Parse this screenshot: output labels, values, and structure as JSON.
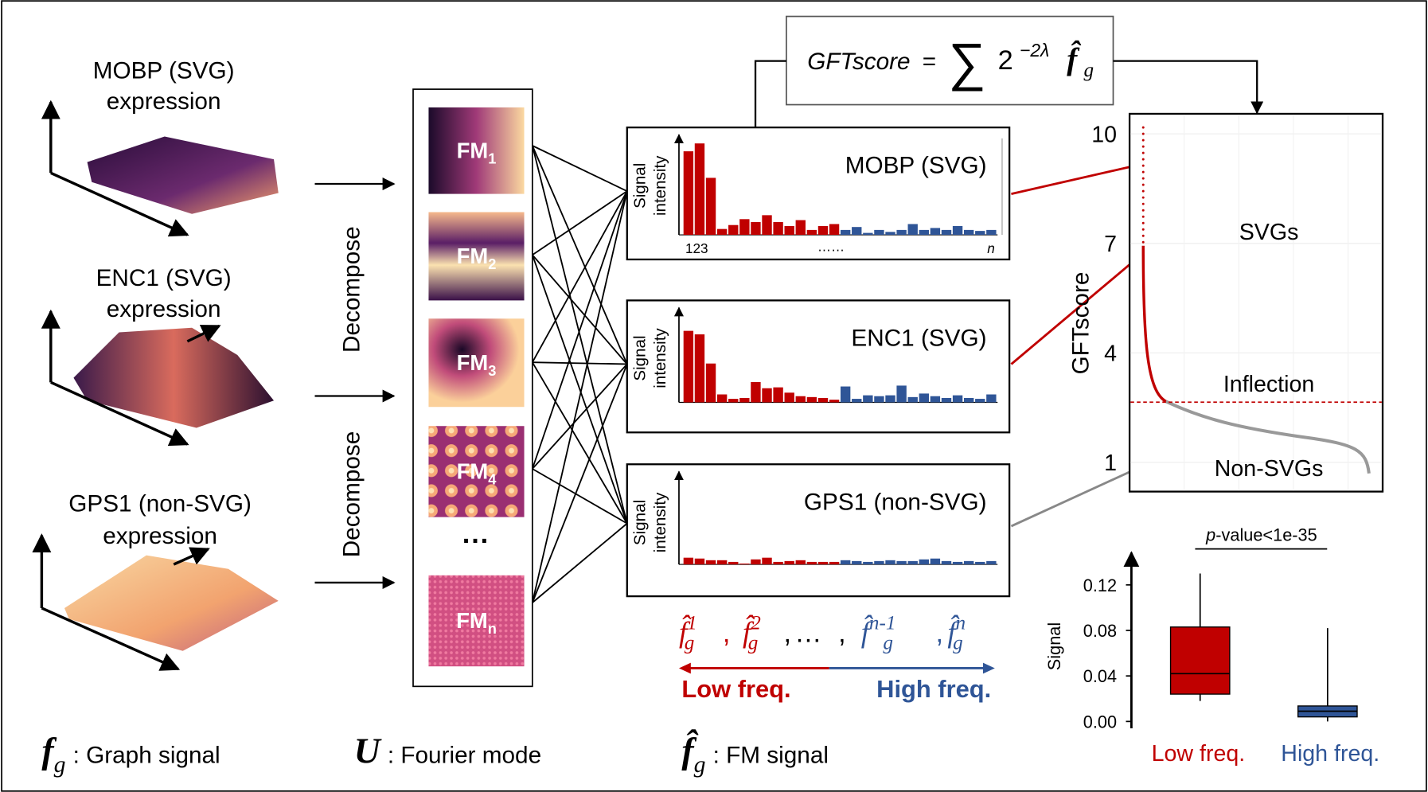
{
  "left_panels": [
    {
      "title": "MOBP (SVG)",
      "subtitle": "expression"
    },
    {
      "title": "ENC1 (SVG)",
      "subtitle": "expression"
    },
    {
      "title": "GPS1 (non-SVG)",
      "subtitle": "expression"
    }
  ],
  "decompose": [
    "Decompose",
    "Decompose"
  ],
  "fourier_modes": {
    "labels": [
      {
        "base": "FM",
        "sub": "1"
      },
      {
        "base": "FM",
        "sub": "2"
      },
      {
        "base": "FM",
        "sub": "3"
      },
      {
        "base": "FM",
        "sub": "4"
      },
      {
        "base": "FM",
        "sub": "n"
      }
    ],
    "ellipsis": "···"
  },
  "formula": {
    "lhs": "GFTscore",
    "equals": "=",
    "sum": "∑",
    "base": "2",
    "exponent": "−2λ",
    "symbol": "f̂",
    "subscript": "g"
  },
  "spectra": [
    {
      "title": "MOBP (SVG)",
      "y_label": [
        "Signal",
        "intensity"
      ],
      "x_labels": [
        "123",
        "……",
        "n"
      ],
      "ylim": [
        0,
        10
      ],
      "series": [
        {
          "color": "#c00000",
          "values": [
            8.5,
            9.3,
            5.8,
            0.6,
            1.0,
            1.6,
            1.3,
            2.0,
            1.3,
            0.9,
            1.5,
            0.5,
            0.9,
            1.1
          ]
        },
        {
          "color": "#2f5597",
          "values": [
            0.5,
            0.8,
            0.2,
            0.5,
            0.3,
            0.5,
            1.1,
            0.5,
            0.7,
            0.5,
            0.9,
            0.5,
            0.4,
            0.5
          ]
        }
      ]
    },
    {
      "title": "ENC1 (SVG)",
      "y_label": [
        "Signal",
        "intensity"
      ],
      "ylim": [
        0,
        10
      ],
      "series": [
        {
          "color": "#c00000",
          "values": [
            8.1,
            7.7,
            4.4,
            0.9,
            0.4,
            0.5,
            2.3,
            1.6,
            1.7,
            1.1,
            0.7,
            0.6,
            0.5,
            0.3
          ]
        },
        {
          "color": "#2f5597",
          "values": [
            1.8,
            0.4,
            0.8,
            0.7,
            0.8,
            1.9,
            0.6,
            1.0,
            0.7,
            0.5,
            0.8,
            0.5,
            0.4,
            0.9
          ]
        }
      ]
    },
    {
      "title": "GPS1 (non-SVG)",
      "y_label": [
        "Signal",
        "intensity"
      ],
      "ylim": [
        0,
        10
      ],
      "series": [
        {
          "color": "#c00000",
          "values": [
            0.8,
            0.7,
            0.5,
            0.5,
            0.3,
            0.1,
            0.6,
            0.8,
            0.3,
            0.4,
            0.5,
            0.3,
            0.3,
            0.3
          ]
        },
        {
          "color": "#2f5597",
          "values": [
            0.5,
            0.4,
            0.3,
            0.4,
            0.5,
            0.4,
            0.4,
            0.6,
            0.7,
            0.4,
            0.3,
            0.4,
            0.3,
            0.4
          ]
        }
      ]
    }
  ],
  "frequency": {
    "terms": [
      {
        "symbol": "f̂",
        "sub": "g",
        "sup": "1"
      },
      {
        "symbol": "f̂",
        "sub": "g",
        "sup": "2"
      },
      {
        "symbol": "f̂",
        "sub": "g",
        "sup": "n-1"
      },
      {
        "symbol": "f̂",
        "sub": "g",
        "sup": "n"
      }
    ],
    "separator": ",",
    "ellipsis": "…",
    "low": "Low freq.",
    "high": "High freq.",
    "low_color": "#c00000",
    "high_color": "#2f5597"
  },
  "gft_plot": {
    "y_label": "GFTscore",
    "ylim": [
      0.2,
      10.55
    ],
    "yticks": [
      1,
      4,
      7,
      10
    ],
    "grid": true,
    "inflection": 2.65,
    "labels": {
      "upper": "SVGs",
      "threshold": "Inflection",
      "lower": "Non-SVGs"
    }
  },
  "box_plot": {
    "annotation": {
      "italic": "p",
      "text": "-value<1e-35"
    },
    "y_label": "Signal",
    "ylim": [
      -0.006,
      0.15
    ],
    "yticks": [
      {
        "value": 0.0,
        "label": "0.00"
      },
      {
        "value": 0.04,
        "label": "0.04"
      },
      {
        "value": 0.08,
        "label": "0.08"
      },
      {
        "value": 0.12,
        "label": "0.12"
      }
    ],
    "boxes": [
      {
        "category": "Low freq.",
        "color": "#c00000",
        "min": 0.018,
        "q1": 0.024,
        "median": 0.042,
        "q3": 0.083,
        "max": 0.13
      },
      {
        "category": "High freq.",
        "color": "#2f5597",
        "min": 0.0,
        "q1": 0.004,
        "median": 0.009,
        "q3": 0.0136,
        "max": 0.082
      }
    ]
  },
  "legend": [
    {
      "symbol": "f",
      "sub": "g",
      "text": ": Graph signal"
    },
    {
      "symbol": "U",
      "text": ": Fourier mode"
    },
    {
      "symbol": "f̂",
      "sub": "g",
      "text": ": FM signal"
    }
  ]
}
